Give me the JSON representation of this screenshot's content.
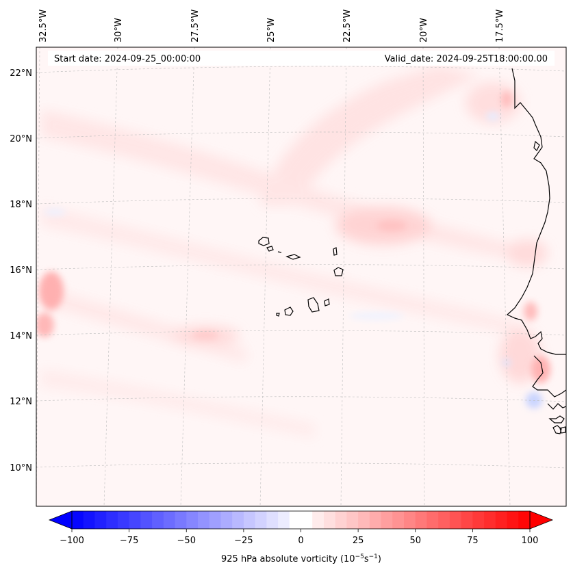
{
  "header": {
    "start_date": "Start date: 2024-09-25_00:00:00",
    "valid_date": "Valid_date: 2024-09-25T18:00:00.00"
  },
  "map": {
    "lon_labels": [
      "32.5°W",
      "30°W",
      "27.5°W",
      "25°W",
      "22.5°W",
      "20°W",
      "17.5°W"
    ],
    "lat_labels": [
      "22°N",
      "20°N",
      "18°N",
      "16°N",
      "14°N",
      "12°N",
      "10°N"
    ],
    "region": "Cape Verde Islands and West African coast"
  },
  "colorbar": {
    "ticks": [
      "−100",
      "−75",
      "−50",
      "−25",
      "0",
      "25",
      "50",
      "75",
      "100"
    ],
    "min": -100,
    "max": 100,
    "step": 5,
    "negative_color": "#0000ff",
    "zero_color": "#ffffff",
    "positive_color": "#ff0000",
    "label_prefix": "925 hPa absolute vorticity (10",
    "label_exp1": "−5",
    "label_mid": "s",
    "label_exp2": "−1",
    "label_suffix": ")"
  }
}
